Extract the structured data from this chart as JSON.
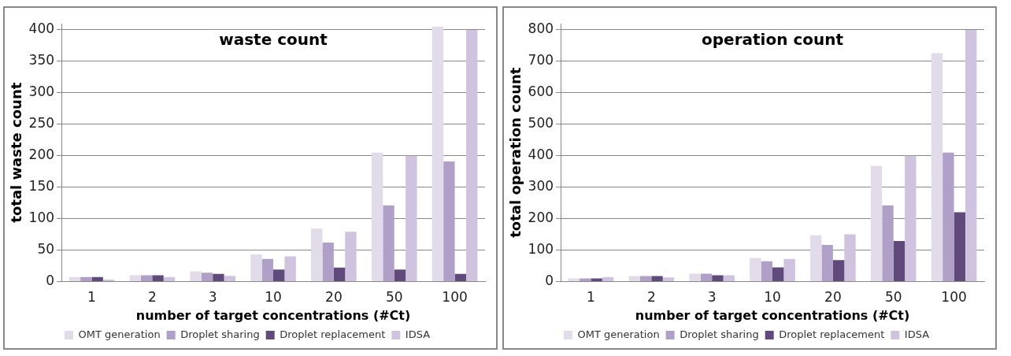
{
  "chart_data": [
    {
      "type": "bar",
      "title": "waste count",
      "xlabel": "number of target concentrations (#Ct)",
      "ylabel": "total waste count",
      "categories": [
        "1",
        "2",
        "3",
        "10",
        "20",
        "50",
        "100"
      ],
      "series": [
        {
          "name": "OMT generation",
          "color": "#e2dcea",
          "values": [
            7,
            10,
            16,
            43,
            84,
            205,
            405
          ]
        },
        {
          "name": "Droplet sharing",
          "color": "#b0a0c8",
          "values": [
            7,
            10,
            14,
            36,
            62,
            121,
            191
          ]
        },
        {
          "name": "Droplet replacement",
          "color": "#604a7b",
          "values": [
            7,
            10,
            12,
            19,
            22,
            19,
            12
          ]
        },
        {
          "name": "IDSA",
          "color": "#cfc3e0",
          "values": [
            3,
            7,
            9,
            40,
            79,
            200,
            400
          ]
        }
      ],
      "ylim": [
        0,
        410
      ],
      "yticks": [
        0,
        50,
        100,
        150,
        200,
        250,
        300,
        350,
        400
      ],
      "grid": "y",
      "legend": "bottom"
    },
    {
      "type": "bar",
      "title": "operation count",
      "xlabel": "number of target concentrations (#Ct)",
      "ylabel": "total operation count",
      "categories": [
        "1",
        "2",
        "3",
        "10",
        "20",
        "50",
        "100"
      ],
      "series": [
        {
          "name": "OMT generation",
          "color": "#e2dcea",
          "values": [
            10,
            17,
            25,
            75,
            147,
            367,
            726
          ]
        },
        {
          "name": "Droplet sharing",
          "color": "#b0a0c8",
          "values": [
            10,
            17,
            25,
            64,
            116,
            242,
            410
          ]
        },
        {
          "name": "Droplet replacement",
          "color": "#604a7b",
          "values": [
            10,
            17,
            20,
            45,
            68,
            129,
            220
          ]
        },
        {
          "name": "IDSA",
          "color": "#cfc3e0",
          "values": [
            14,
            13,
            20,
            72,
            150,
            400,
            800
          ]
        }
      ],
      "ylim": [
        0,
        820
      ],
      "yticks": [
        0,
        100,
        200,
        300,
        400,
        500,
        600,
        700,
        800
      ],
      "grid": "y",
      "legend": "bottom"
    }
  ]
}
